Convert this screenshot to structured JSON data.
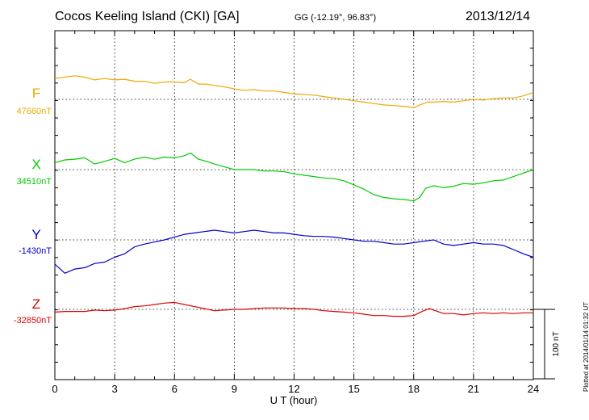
{
  "header": {
    "station": "Cocos Keeling Island (CKI)  [GA]",
    "coords": "GG (-12.19°,  96.83°)",
    "date": "2013/12/14"
  },
  "plotted_note": "Plotted at 2014/01/14 01:32 UT",
  "scale_label": "100 nT",
  "chart_data": {
    "type": "line",
    "xlabel": "U T (hour)",
    "xlim": [
      0,
      24
    ],
    "xticks": [
      0,
      3,
      6,
      9,
      12,
      15,
      18,
      21,
      24
    ],
    "grid": true,
    "scale_bar_nT": 100,
    "series": [
      {
        "name": "F",
        "baseline_label": "47660nT",
        "baseline_nT": 47660,
        "color": "#f0a800",
        "points": [
          [
            0,
            47690
          ],
          [
            0.5,
            47692
          ],
          [
            1,
            47694
          ],
          [
            1.5,
            47692
          ],
          [
            2,
            47688
          ],
          [
            2.5,
            47690
          ],
          [
            3,
            47688
          ],
          [
            3.5,
            47689
          ],
          [
            4,
            47686
          ],
          [
            4.5,
            47686
          ],
          [
            5,
            47683
          ],
          [
            5.5,
            47685
          ],
          [
            6,
            47685
          ],
          [
            6.5,
            47684
          ],
          [
            6.8,
            47689
          ],
          [
            7.2,
            47682
          ],
          [
            7.6,
            47682
          ],
          [
            8,
            47680
          ],
          [
            8.5,
            47678
          ],
          [
            9,
            47675
          ],
          [
            9.5,
            47673
          ],
          [
            10,
            47674
          ],
          [
            10.5,
            47672
          ],
          [
            11,
            47672
          ],
          [
            11.5,
            47670
          ],
          [
            12,
            47668
          ],
          [
            12.5,
            47667
          ],
          [
            13,
            47666
          ],
          [
            13.5,
            47664
          ],
          [
            14,
            47662
          ],
          [
            14.5,
            47660
          ],
          [
            15,
            47658
          ],
          [
            15.5,
            47656
          ],
          [
            16,
            47654
          ],
          [
            16.5,
            47652
          ],
          [
            17,
            47651
          ],
          [
            17.5,
            47650
          ],
          [
            18,
            47648
          ],
          [
            18.3,
            47652
          ],
          [
            18.7,
            47656
          ],
          [
            19,
            47656
          ],
          [
            19.5,
            47657
          ],
          [
            20,
            47656
          ],
          [
            20.5,
            47658
          ],
          [
            21,
            47660
          ],
          [
            21.5,
            47659
          ],
          [
            22,
            47661
          ],
          [
            22.5,
            47662
          ],
          [
            23,
            47662
          ],
          [
            23.5,
            47665
          ],
          [
            24,
            47670
          ]
        ]
      },
      {
        "name": "X",
        "baseline_label": "34510nT",
        "baseline_nT": 34510,
        "color": "#00cc00",
        "points": [
          [
            0,
            34520
          ],
          [
            0.5,
            34524
          ],
          [
            1,
            34525
          ],
          [
            1.5,
            34527
          ],
          [
            2,
            34518
          ],
          [
            2.5,
            34522
          ],
          [
            3,
            34526
          ],
          [
            3.5,
            34520
          ],
          [
            4,
            34525
          ],
          [
            4.5,
            34528
          ],
          [
            5,
            34525
          ],
          [
            5.5,
            34528
          ],
          [
            6,
            34527
          ],
          [
            6.5,
            34530
          ],
          [
            6.8,
            34534
          ],
          [
            7.2,
            34525
          ],
          [
            7.6,
            34522
          ],
          [
            8,
            34518
          ],
          [
            8.5,
            34514
          ],
          [
            9,
            34510
          ],
          [
            9.5,
            34510
          ],
          [
            10,
            34510
          ],
          [
            10.5,
            34508
          ],
          [
            11,
            34508
          ],
          [
            11.5,
            34507
          ],
          [
            12,
            34504
          ],
          [
            12.5,
            34502
          ],
          [
            13,
            34500
          ],
          [
            13.5,
            34498
          ],
          [
            14,
            34497
          ],
          [
            14.5,
            34494
          ],
          [
            15,
            34488
          ],
          [
            15.5,
            34482
          ],
          [
            16,
            34474
          ],
          [
            16.5,
            34470
          ],
          [
            17,
            34468
          ],
          [
            17.5,
            34467
          ],
          [
            18,
            34465
          ],
          [
            18.3,
            34470
          ],
          [
            18.6,
            34483
          ],
          [
            19,
            34487
          ],
          [
            19.5,
            34484
          ],
          [
            20,
            34486
          ],
          [
            20.5,
            34490
          ],
          [
            21,
            34489
          ],
          [
            21.5,
            34491
          ],
          [
            22,
            34494
          ],
          [
            22.5,
            34495
          ],
          [
            23,
            34500
          ],
          [
            23.5,
            34505
          ],
          [
            24,
            34510
          ]
        ]
      },
      {
        "name": "Y",
        "baseline_label": "-1430nT",
        "baseline_nT": -1430,
        "color": "#0000cc",
        "points": [
          [
            0,
            -1465
          ],
          [
            0.5,
            -1478
          ],
          [
            1,
            -1472
          ],
          [
            1.5,
            -1470
          ],
          [
            2,
            -1464
          ],
          [
            2.5,
            -1462
          ],
          [
            3,
            -1455
          ],
          [
            3.5,
            -1450
          ],
          [
            4,
            -1440
          ],
          [
            4.5,
            -1436
          ],
          [
            5,
            -1433
          ],
          [
            5.5,
            -1430
          ],
          [
            6,
            -1426
          ],
          [
            6.5,
            -1422
          ],
          [
            7,
            -1420
          ],
          [
            7.5,
            -1418
          ],
          [
            8,
            -1416
          ],
          [
            8.5,
            -1418
          ],
          [
            9,
            -1420
          ],
          [
            9.5,
            -1418
          ],
          [
            10,
            -1416
          ],
          [
            10.5,
            -1418
          ],
          [
            11,
            -1420
          ],
          [
            11.5,
            -1420
          ],
          [
            12,
            -1422
          ],
          [
            12.5,
            -1424
          ],
          [
            13,
            -1425
          ],
          [
            13.5,
            -1425
          ],
          [
            14,
            -1426
          ],
          [
            14.5,
            -1428
          ],
          [
            15,
            -1430
          ],
          [
            15.5,
            -1432
          ],
          [
            16,
            -1432
          ],
          [
            16.5,
            -1434
          ],
          [
            17,
            -1436
          ],
          [
            17.5,
            -1436
          ],
          [
            18,
            -1434
          ],
          [
            18.5,
            -1432
          ],
          [
            19,
            -1430
          ],
          [
            19.5,
            -1436
          ],
          [
            20,
            -1438
          ],
          [
            20.5,
            -1436
          ],
          [
            21,
            -1434
          ],
          [
            21.5,
            -1436
          ],
          [
            22,
            -1436
          ],
          [
            22.5,
            -1438
          ],
          [
            23,
            -1444
          ],
          [
            23.5,
            -1450
          ],
          [
            24,
            -1455
          ]
        ]
      },
      {
        "name": "Z",
        "baseline_label": "-32850nT",
        "baseline_nT": -32850,
        "color": "#dd0000",
        "points": [
          [
            0,
            -32854
          ],
          [
            0.5,
            -32853
          ],
          [
            1,
            -32853
          ],
          [
            1.5,
            -32853
          ],
          [
            2,
            -32851
          ],
          [
            2.5,
            -32852
          ],
          [
            3,
            -32851
          ],
          [
            3.5,
            -32849
          ],
          [
            4,
            -32846
          ],
          [
            4.5,
            -32845
          ],
          [
            5,
            -32843
          ],
          [
            5.5,
            -32841
          ],
          [
            6,
            -32840
          ],
          [
            6.5,
            -32843
          ],
          [
            7,
            -32846
          ],
          [
            7.5,
            -32849
          ],
          [
            8,
            -32852
          ],
          [
            8.5,
            -32851
          ],
          [
            9,
            -32850
          ],
          [
            9.5,
            -32850
          ],
          [
            10,
            -32849
          ],
          [
            10.5,
            -32848
          ],
          [
            11,
            -32848
          ],
          [
            11.5,
            -32848
          ],
          [
            12,
            -32849
          ],
          [
            12.5,
            -32849
          ],
          [
            13,
            -32850
          ],
          [
            13.5,
            -32852
          ],
          [
            14,
            -32853
          ],
          [
            14.5,
            -32854
          ],
          [
            15,
            -32855
          ],
          [
            15.5,
            -32857
          ],
          [
            16,
            -32859
          ],
          [
            16.5,
            -32859
          ],
          [
            17,
            -32860
          ],
          [
            17.5,
            -32860
          ],
          [
            18,
            -32859
          ],
          [
            18.5,
            -32852
          ],
          [
            18.8,
            -32849
          ],
          [
            19,
            -32851
          ],
          [
            19.5,
            -32856
          ],
          [
            20,
            -32856
          ],
          [
            20.5,
            -32858
          ],
          [
            21,
            -32856
          ],
          [
            21.5,
            -32855
          ],
          [
            22,
            -32856
          ],
          [
            22.5,
            -32855
          ],
          [
            23,
            -32856
          ],
          [
            23.5,
            -32855
          ],
          [
            24,
            -32855
          ]
        ]
      }
    ]
  }
}
